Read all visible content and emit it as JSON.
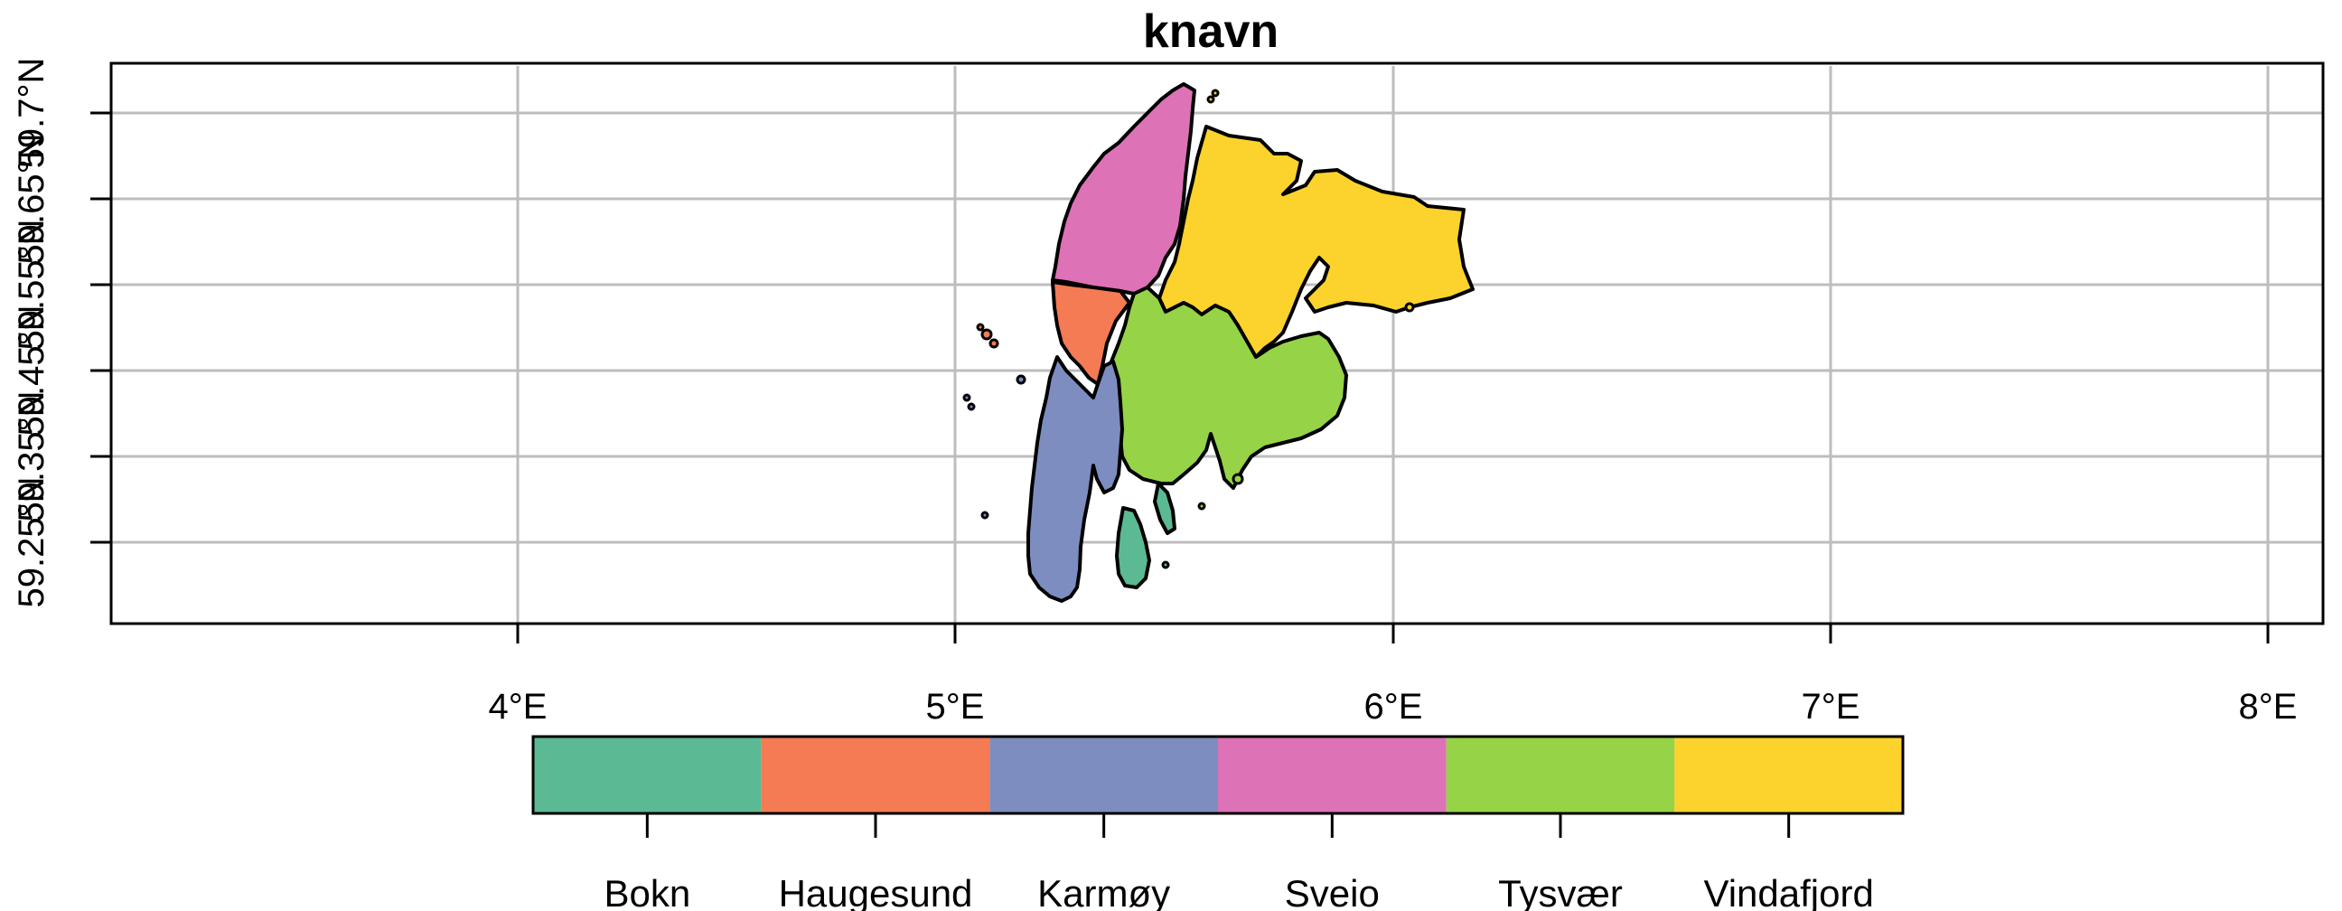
{
  "map": {
    "title": "knavn",
    "x_axis": {
      "ticks": [
        "4°E",
        "5°E",
        "6°E",
        "7°E",
        "8°E"
      ]
    },
    "y_axis": {
      "ticks": [
        "59.25°N",
        "59.35°N",
        "59.45°N",
        "59.55°N",
        "59.65°N",
        "59.7°N"
      ]
    },
    "grid": true,
    "legend": {
      "placement": "bottom",
      "entries": [
        {
          "label": "Bokn",
          "color": "#5BBA93"
        },
        {
          "label": "Haugesund",
          "color": "#F47B54"
        },
        {
          "label": "Karmøy",
          "color": "#7D8DC0"
        },
        {
          "label": "Sveio",
          "color": "#DD72B6"
        },
        {
          "label": "Tysvær",
          "color": "#97D347"
        },
        {
          "label": "Vindafjord",
          "color": "#FCD22C"
        }
      ]
    }
  }
}
